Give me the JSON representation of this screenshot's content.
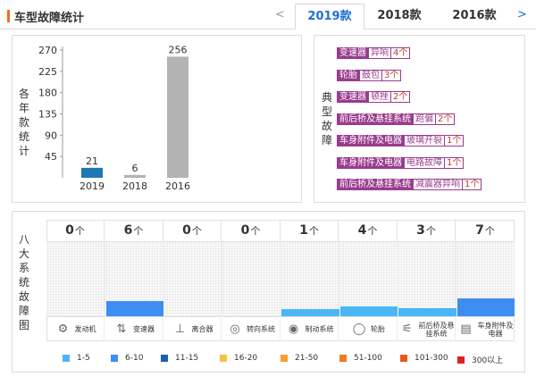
{
  "header": {
    "title": "车型故障统计",
    "prev_arrow": "<",
    "next_arrow": ">",
    "tabs": [
      {
        "label": "2019款",
        "active": true
      },
      {
        "label": "2018款",
        "active": false
      },
      {
        "label": "2016款",
        "active": false
      }
    ]
  },
  "chart_data": [
    {
      "type": "bar",
      "ylabel": "各年款统计",
      "ylim": [
        0,
        270
      ],
      "yticks": [
        45,
        90,
        135,
        180,
        225,
        270
      ],
      "categories": [
        "2019",
        "2018",
        "2016"
      ],
      "values": [
        21,
        6,
        256
      ],
      "bar_colors": [
        "#1f77b4",
        "#b3b3b3",
        "#b3b3b3"
      ],
      "grid": false
    },
    {
      "type": "bar",
      "ylabel": "八大系统故障图",
      "categories": [
        "发动机",
        "变速器",
        "离合器",
        "转向系统",
        "制动系统",
        "轮胎",
        "前后桥及悬挂系统",
        "车身附件及电器"
      ],
      "values": [
        0,
        6,
        0,
        0,
        1,
        4,
        3,
        7
      ],
      "unit": "个",
      "bar_colors": [
        "#3d8ef0",
        "#3d8ef0",
        "#3d8ef0",
        "#3d8ef0",
        "#49b6f5",
        "#49b6f5",
        "#49b6f5",
        "#3d8ef0"
      ],
      "icons": [
        "engine-icon",
        "gear-shift-icon",
        "clutch-pedal-icon",
        "steering-wheel-icon",
        "brake-disc-icon",
        "tire-icon",
        "suspension-icon",
        "car-door-icon"
      ],
      "legend": [
        {
          "label": "1-5",
          "color": "#49b6f5"
        },
        {
          "label": "6-10",
          "color": "#3d8ef0"
        },
        {
          "label": "11-15",
          "color": "#1a5fb4"
        },
        {
          "label": "16-20",
          "color": "#f5c242"
        },
        {
          "label": "21-50",
          "color": "#f5a030"
        },
        {
          "label": "51-100",
          "color": "#f07828"
        },
        {
          "label": "101-300",
          "color": "#e8581c"
        },
        {
          "label": "300以上",
          "color": "#e02020"
        }
      ]
    }
  ],
  "typical_faults": {
    "label": "典型故障",
    "items": [
      {
        "part": "变速器",
        "symptom": "异响",
        "count": "4个"
      },
      {
        "part": "轮胎",
        "symptom": "鼓包",
        "count": "3个"
      },
      {
        "part": "变速器",
        "symptom": "顿挫",
        "count": "2个"
      },
      {
        "part": "前后桥及悬挂系统",
        "symptom": "跑偏",
        "count": "2个"
      },
      {
        "part": "车身附件及电器",
        "symptom": "玻璃开裂",
        "count": "1个"
      },
      {
        "part": "车身附件及电器",
        "symptom": "电路故障",
        "count": "1个"
      },
      {
        "part": "前后桥及悬挂系统",
        "symptom": "减震器异响",
        "count": "1个"
      }
    ]
  }
}
